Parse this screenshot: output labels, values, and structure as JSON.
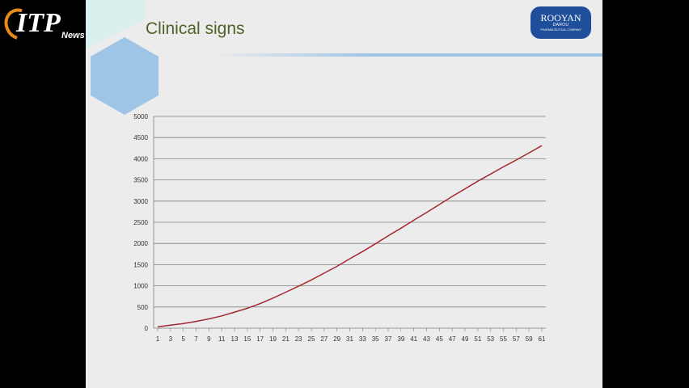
{
  "watermark": {
    "text": "ITP",
    "sub": "News"
  },
  "slide": {
    "title": "Clinical signs",
    "logo": {
      "name": "ROOYAN",
      "sub": "DAROU",
      "tag": "PHARMACEUTICAL COMPANY"
    }
  },
  "colors": {
    "series": "#a3282f",
    "title": "#4f6228",
    "grid": "#7f7f7f",
    "logo": "#1f4e9a"
  },
  "chart_data": {
    "type": "line",
    "title": "",
    "xlabel": "",
    "ylabel": "",
    "ylim": [
      0,
      5000
    ],
    "yticks": [
      0,
      500,
      1000,
      1500,
      2000,
      2500,
      3000,
      3500,
      4000,
      4500,
      5000
    ],
    "xticks": [
      1,
      3,
      5,
      7,
      9,
      11,
      13,
      15,
      17,
      19,
      21,
      23,
      25,
      27,
      29,
      31,
      33,
      35,
      37,
      39,
      41,
      43,
      45,
      47,
      49,
      51,
      53,
      55,
      57,
      59,
      61
    ],
    "grid": true,
    "legend": "none",
    "series": [
      {
        "x": [
          1,
          3,
          5,
          7,
          9,
          11,
          13,
          15,
          17,
          19,
          21,
          23,
          25,
          27,
          29,
          31,
          33,
          35,
          37,
          39,
          41,
          43,
          45,
          47,
          49,
          51,
          53,
          55,
          57,
          59,
          61
        ],
        "values": [
          30,
          70,
          110,
          160,
          220,
          290,
          380,
          470,
          580,
          710,
          850,
          990,
          1140,
          1300,
          1460,
          1640,
          1810,
          1990,
          2180,
          2360,
          2550,
          2730,
          2920,
          3110,
          3290,
          3470,
          3640,
          3810,
          3970,
          4140,
          4310
        ]
      }
    ]
  }
}
